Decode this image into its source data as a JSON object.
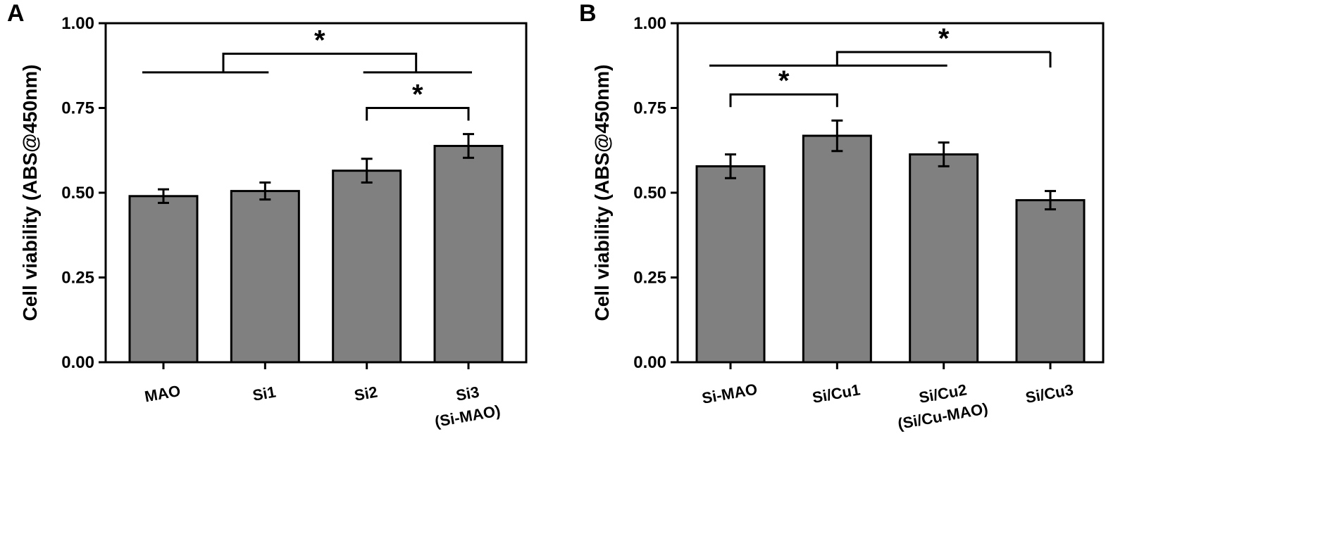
{
  "colors": {
    "bar": "#808080",
    "stroke": "#000000",
    "background": "#ffffff"
  },
  "chart_data": [
    {
      "type": "bar",
      "panel": "A",
      "ylabel": "Cell viability (ABS@450nm)",
      "ylim": [
        0,
        1.0
      ],
      "yticks": [
        "0.00",
        "0.25",
        "0.50",
        "0.75",
        "1.00"
      ],
      "categories": [
        [
          "MAO"
        ],
        [
          "Si1"
        ],
        [
          "Si2"
        ],
        [
          "Si3",
          "(Si-MAO)"
        ]
      ],
      "values": [
        0.49,
        0.505,
        0.565,
        0.638
      ],
      "errors": [
        0.02,
        0.025,
        0.035,
        0.035
      ],
      "significance": [
        {
          "type": "group",
          "group1": [
            0,
            1
          ],
          "group2": [
            2,
            3
          ],
          "label": "*",
          "line_level": 0.855,
          "bridge_level": 0.91
        },
        {
          "type": "pair",
          "from": 2,
          "to": 3,
          "label": "*",
          "level": 0.75
        }
      ]
    },
    {
      "type": "bar",
      "panel": "B",
      "ylabel": "Cell viability (ABS@450nm)",
      "ylim": [
        0,
        1.0
      ],
      "yticks": [
        "0.00",
        "0.25",
        "0.50",
        "0.75",
        "1.00"
      ],
      "categories": [
        [
          "Si-MAO"
        ],
        [
          "Si/Cu1"
        ],
        [
          "Si/Cu2",
          "(Si/Cu-MAO)"
        ],
        [
          "Si/Cu3"
        ]
      ],
      "values": [
        0.578,
        0.668,
        0.613,
        0.478
      ],
      "errors": [
        0.035,
        0.045,
        0.035,
        0.027
      ],
      "significance": [
        {
          "type": "pair",
          "from": 0,
          "to": 1,
          "label": "*",
          "level": 0.79
        },
        {
          "type": "group",
          "group1": [
            0,
            2
          ],
          "to": 3,
          "label": "*",
          "line_level": 0.875,
          "bridge_level": 0.915
        }
      ]
    }
  ]
}
